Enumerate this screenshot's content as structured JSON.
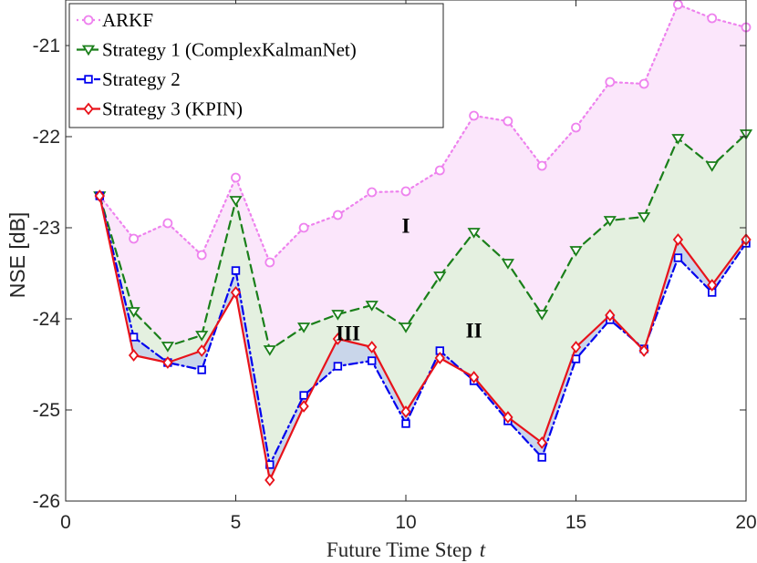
{
  "chart_data": {
    "type": "line",
    "xlabel": "Future Time Step",
    "xlabel_var": "t",
    "ylabel": "NSE [dB]",
    "xlim": [
      0,
      20
    ],
    "ylim": [
      -26,
      -20.5
    ],
    "xticks": [
      0,
      5,
      10,
      15,
      20
    ],
    "yticks": [
      -26,
      -25,
      -24,
      -23,
      -22,
      -21
    ],
    "x": [
      1,
      2,
      3,
      4,
      5,
      6,
      7,
      8,
      9,
      10,
      11,
      12,
      13,
      14,
      15,
      16,
      17,
      18,
      19,
      20
    ],
    "series": [
      {
        "name": "ARKF",
        "color": "#ee82ee",
        "style": "dotted",
        "marker": "circle",
        "values": [
          -22.65,
          -23.12,
          -22.95,
          -23.3,
          -22.45,
          -23.38,
          -23.0,
          -22.86,
          -22.61,
          -22.6,
          -22.37,
          -21.77,
          -21.83,
          -22.32,
          -21.9,
          -21.4,
          -21.42,
          -20.55,
          -20.7,
          -20.8
        ]
      },
      {
        "name": "Strategy 1 (ComplexKalmanNet)",
        "color": "#1a7f1a",
        "style": "dashed",
        "marker": "triangle-down",
        "values": [
          -22.65,
          -23.92,
          -24.3,
          -24.18,
          -22.7,
          -24.34,
          -24.09,
          -23.95,
          -23.85,
          -24.09,
          -23.53,
          -23.05,
          -23.39,
          -23.95,
          -23.25,
          -22.92,
          -22.88,
          -22.02,
          -22.32,
          -21.97
        ]
      },
      {
        "name": "Strategy 2",
        "color": "#0000ee",
        "style": "dashdot",
        "marker": "square",
        "values": [
          -22.65,
          -24.2,
          -24.48,
          -24.56,
          -23.47,
          -25.6,
          -24.84,
          -24.52,
          -24.46,
          -25.15,
          -24.35,
          -24.68,
          -25.12,
          -25.52,
          -24.44,
          -24.01,
          -24.33,
          -23.33,
          -23.71,
          -23.17
        ]
      },
      {
        "name": "Strategy 3 (KPIN)",
        "color": "#e8121a",
        "style": "solid",
        "marker": "diamond",
        "values": [
          -22.65,
          -24.4,
          -24.48,
          -24.35,
          -23.71,
          -25.77,
          -24.96,
          -24.22,
          -24.31,
          -25.02,
          -24.43,
          -24.64,
          -25.08,
          -25.36,
          -24.31,
          -23.96,
          -24.35,
          -23.13,
          -23.63,
          -23.13
        ]
      }
    ],
    "fills": [
      {
        "between": [
          "ARKF",
          "Strategy 1 (ComplexKalmanNet)"
        ],
        "color": "#fbe6fb"
      },
      {
        "between": [
          "Strategy 1 (ComplexKalmanNet)",
          "Strategy 3 (KPIN)"
        ],
        "color": "#e4f0e0"
      },
      {
        "between": [
          "Strategy 2",
          "Strategy 3 (KPIN)"
        ],
        "color": "#c9d6ea"
      }
    ],
    "region_labels": [
      {
        "text": "I",
        "x": 10,
        "y": -23.0
      },
      {
        "text": "II",
        "x": 12,
        "y": -24.15
      },
      {
        "text": "III",
        "x": 8.3,
        "y": -24.18
      }
    ],
    "legend_position": "top-left",
    "grid": false
  }
}
